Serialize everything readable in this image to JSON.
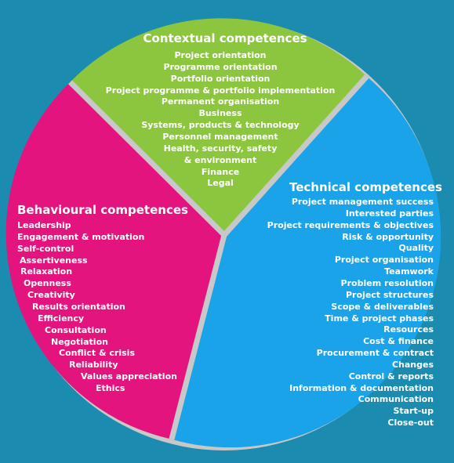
{
  "colors": {
    "background": "#1b8bb0",
    "contextual": "#8cc63f",
    "technical": "#1aa3e8",
    "behavioural": "#e3147e",
    "divider": "#c8c8c8"
  },
  "contextual": {
    "title": "Contextual competences",
    "items": [
      "Project orientation",
      "Programme orientation",
      "Portfolio orientation",
      "Project programme & portfolio implementation",
      "Permanent organisation",
      "Business",
      "Systems, products & technology",
      "Personnel management",
      "Health, security, safety",
      "& environment",
      "Finance",
      "Legal"
    ]
  },
  "technical": {
    "title": "Technical competences",
    "items": [
      "Project management success",
      "Interested parties",
      "Project requirements & objectives",
      "Risk & opportunity",
      "Quality",
      "Project organisation",
      "Teamwork",
      "Problem resolution",
      "Project structures",
      "Scope & deliverables",
      "Time & project phases",
      "Resources",
      "Cost & finance",
      "Procurement & contract",
      "Changes",
      "Control & reports",
      "Information & documentation",
      "Communication",
      "Start-up",
      "Close-out"
    ]
  },
  "behavioural": {
    "title": "Behavioural competences",
    "items": [
      "Leadership",
      "Engagement & motivation",
      "Self-control",
      "Assertiveness",
      "Relaxation",
      "Openness",
      "Creativity",
      "Results orientation",
      "Efficiency",
      "Consultation",
      "Negotiation",
      "Conflict & crisis",
      "Reliability",
      "Values appreciation",
      "Ethics"
    ]
  }
}
